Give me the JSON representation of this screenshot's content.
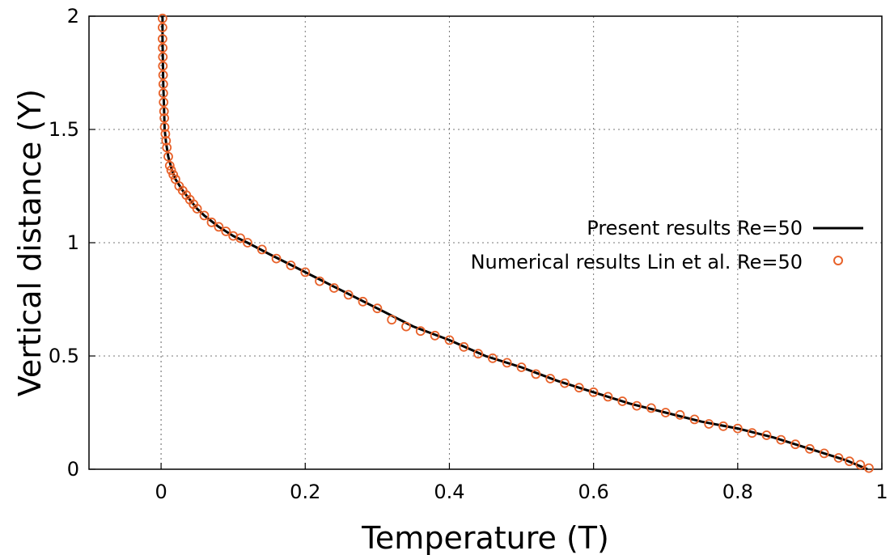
{
  "chart_data": {
    "type": "line",
    "xlabel": "Temperature (T)",
    "ylabel": "Vertical distance (Y)",
    "xlim": [
      -0.1,
      1
    ],
    "ylim": [
      0,
      2
    ],
    "xticks": [
      "0",
      "0.2",
      "0.4",
      "0.6",
      "0.8",
      "1"
    ],
    "yticks": [
      "0",
      "0.5",
      "1",
      "1.5",
      "2"
    ],
    "grid": true,
    "grid_style": "dotted",
    "legend_position": "right",
    "series": [
      {
        "name": "Present results Re=50",
        "style": "line",
        "color": "#000000",
        "x": [
          0.98,
          0.95,
          0.9,
          0.85,
          0.8,
          0.75,
          0.7,
          0.65,
          0.6,
          0.55,
          0.5,
          0.45,
          0.4,
          0.35,
          0.3,
          0.25,
          0.2,
          0.15,
          0.12,
          0.1,
          0.08,
          0.06,
          0.05,
          0.04,
          0.03,
          0.02,
          0.015,
          0.01,
          0.007,
          0.005,
          0.004,
          0.003,
          0.0025,
          0.002,
          0.002
        ],
        "y": [
          0.0,
          0.04,
          0.09,
          0.14,
          0.18,
          0.21,
          0.25,
          0.29,
          0.34,
          0.39,
          0.45,
          0.5,
          0.57,
          0.63,
          0.71,
          0.79,
          0.87,
          0.95,
          1.0,
          1.03,
          1.07,
          1.12,
          1.15,
          1.19,
          1.23,
          1.28,
          1.32,
          1.38,
          1.44,
          1.5,
          1.6,
          1.7,
          1.8,
          1.9,
          2.0
        ]
      },
      {
        "name": "Numerical results Lin et al. Re=50",
        "style": "markers",
        "color": "#e8622a",
        "x": [
          0.982,
          0.97,
          0.955,
          0.94,
          0.92,
          0.9,
          0.88,
          0.86,
          0.84,
          0.82,
          0.8,
          0.78,
          0.76,
          0.74,
          0.72,
          0.7,
          0.68,
          0.66,
          0.64,
          0.62,
          0.6,
          0.58,
          0.56,
          0.54,
          0.52,
          0.5,
          0.48,
          0.46,
          0.44,
          0.42,
          0.4,
          0.38,
          0.36,
          0.34,
          0.32,
          0.3,
          0.28,
          0.26,
          0.24,
          0.22,
          0.2,
          0.18,
          0.16,
          0.14,
          0.12,
          0.11,
          0.1,
          0.09,
          0.08,
          0.07,
          0.06,
          0.05,
          0.045,
          0.04,
          0.035,
          0.03,
          0.025,
          0.02,
          0.017,
          0.014,
          0.012,
          0.01,
          0.008,
          0.007,
          0.006,
          0.005,
          0.0045,
          0.004,
          0.0035,
          0.003,
          0.003,
          0.0028,
          0.0025,
          0.0025,
          0.0022,
          0.002,
          0.002,
          0.002
        ],
        "y": [
          0.005,
          0.02,
          0.035,
          0.05,
          0.07,
          0.09,
          0.11,
          0.13,
          0.15,
          0.16,
          0.18,
          0.19,
          0.2,
          0.22,
          0.24,
          0.25,
          0.27,
          0.28,
          0.3,
          0.32,
          0.34,
          0.36,
          0.38,
          0.4,
          0.42,
          0.45,
          0.47,
          0.49,
          0.51,
          0.54,
          0.57,
          0.59,
          0.61,
          0.63,
          0.66,
          0.71,
          0.74,
          0.77,
          0.8,
          0.83,
          0.87,
          0.9,
          0.93,
          0.97,
          1.0,
          1.02,
          1.03,
          1.05,
          1.07,
          1.09,
          1.12,
          1.15,
          1.17,
          1.19,
          1.21,
          1.23,
          1.25,
          1.28,
          1.3,
          1.32,
          1.34,
          1.38,
          1.42,
          1.45,
          1.48,
          1.51,
          1.55,
          1.58,
          1.62,
          1.66,
          1.7,
          1.74,
          1.78,
          1.82,
          1.86,
          1.9,
          1.95,
          1.99
        ]
      }
    ]
  }
}
